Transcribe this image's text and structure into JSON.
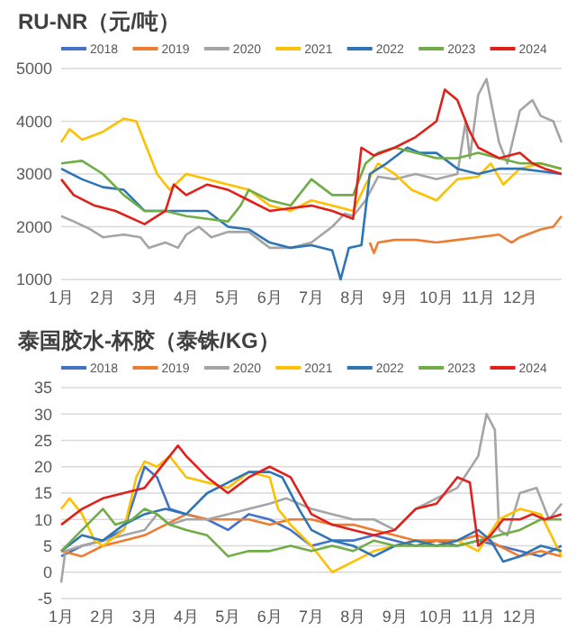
{
  "chart_data": [
    {
      "type": "line",
      "title": "RU-NR（元/吨）",
      "xlim": [
        1,
        13
      ],
      "xticks": [
        {
          "value": 1,
          "label": "1月"
        },
        {
          "value": 2,
          "label": "2月"
        },
        {
          "value": 3,
          "label": "3月"
        },
        {
          "value": 4,
          "label": "4月"
        },
        {
          "value": 5,
          "label": "5月"
        },
        {
          "value": 6,
          "label": "6月"
        },
        {
          "value": 7,
          "label": "7月"
        },
        {
          "value": 8,
          "label": "8月"
        },
        {
          "value": 9,
          "label": "9月"
        },
        {
          "value": 10,
          "label": "10月"
        },
        {
          "value": 11,
          "label": "11月"
        },
        {
          "value": 12,
          "label": "12月"
        }
      ],
      "ylim": [
        1000,
        5000
      ],
      "yticks": [
        1000,
        2000,
        3000,
        4000,
        5000
      ],
      "grid": "y",
      "legend": "top",
      "marker": "none",
      "series": [
        {
          "name": "2018",
          "color": "#4472c4"
        },
        {
          "name": "2019",
          "color": "#ed7d31",
          "x": [
            8.4,
            8.5,
            8.6,
            9,
            9.5,
            10,
            10.5,
            11,
            11.5,
            11.8,
            12,
            12.5,
            12.8,
            13
          ],
          "values": [
            1700,
            1500,
            1700,
            1750,
            1750,
            1700,
            1750,
            1800,
            1850,
            1700,
            1800,
            1950,
            2000,
            2200
          ]
        },
        {
          "name": "2020",
          "color": "#a5a5a5",
          "x": [
            1,
            1.3,
            1.7,
            2,
            2.5,
            2.9,
            3.1,
            3.5,
            3.8,
            4,
            4.3,
            4.6,
            5,
            5.5,
            6,
            6.5,
            7,
            7.5,
            7.8,
            8,
            8.3,
            8.6,
            9,
            9.5,
            10,
            10.5,
            10.7,
            10.8,
            11,
            11.2,
            11.5,
            11.7,
            12,
            12.3,
            12.5,
            12.8,
            13
          ],
          "values": [
            2200,
            2100,
            1950,
            1800,
            1850,
            1800,
            1600,
            1700,
            1600,
            1850,
            2000,
            1800,
            1900,
            1900,
            1600,
            1600,
            1700,
            2000,
            2250,
            2200,
            2500,
            2950,
            2900,
            3000,
            2900,
            3000,
            4000,
            3300,
            4500,
            4800,
            3600,
            3200,
            4200,
            4400,
            4100,
            4000,
            3600
          ]
        },
        {
          "name": "2021",
          "color": "#ffc000",
          "x": [
            1,
            1.2,
            1.5,
            2,
            2.5,
            2.8,
            3,
            3.3,
            3.6,
            4,
            4.5,
            5,
            5.5,
            6,
            6.5,
            7,
            7.5,
            8,
            8.3,
            8.6,
            9,
            9.4,
            10,
            10.5,
            11,
            11.3,
            11.6,
            12,
            12.5,
            13
          ],
          "values": [
            3600,
            3850,
            3650,
            3800,
            4050,
            4000,
            3600,
            3000,
            2700,
            3000,
            2900,
            2800,
            2700,
            2400,
            2300,
            2500,
            2400,
            2300,
            2800,
            3200,
            3000,
            2700,
            2500,
            2900,
            2950,
            3200,
            2800,
            3100,
            3200,
            3100
          ]
        },
        {
          "name": "2022",
          "color": "#2e75b6",
          "x": [
            1,
            1.5,
            2,
            2.5,
            3,
            3.5,
            4,
            4.5,
            5,
            5.5,
            6,
            6.5,
            7,
            7.5,
            7.7,
            7.9,
            8.2,
            8.4,
            8.8,
            9.3,
            9.6,
            10,
            10.5,
            11,
            11.5,
            12,
            12.5,
            13
          ],
          "values": [
            3100,
            2900,
            2750,
            2700,
            2300,
            2300,
            2300,
            2300,
            2000,
            1950,
            1700,
            1600,
            1650,
            1550,
            1000,
            1600,
            1650,
            3000,
            3200,
            3500,
            3400,
            3400,
            3100,
            3000,
            3100,
            3100,
            3050,
            3000
          ]
        },
        {
          "name": "2023",
          "color": "#70ad47",
          "x": [
            1,
            1.5,
            2,
            2.5,
            3,
            3.5,
            4,
            4.5,
            5,
            5.3,
            5.5,
            6,
            6.5,
            7,
            7.5,
            8,
            8.3,
            8.6,
            9,
            9.5,
            10,
            10.5,
            11,
            11.5,
            12,
            12.5,
            13
          ],
          "values": [
            3200,
            3250,
            3000,
            2600,
            2300,
            2300,
            2200,
            2150,
            2100,
            2400,
            2700,
            2500,
            2400,
            2900,
            2600,
            2600,
            3200,
            3400,
            3500,
            3400,
            3300,
            3300,
            3400,
            3300,
            3200,
            3200,
            3100
          ]
        },
        {
          "name": "2024",
          "color": "#e0201b",
          "x": [
            1,
            1.3,
            1.8,
            2.3,
            3,
            3.5,
            3.7,
            4,
            4.5,
            5,
            5.5,
            6,
            6.5,
            7,
            7.5,
            8,
            8.2,
            8.5,
            9,
            9.5,
            10,
            10.2,
            10.5,
            10.8,
            11,
            11.5,
            12,
            12.3,
            12.6,
            13
          ],
          "values": [
            2900,
            2600,
            2400,
            2300,
            2050,
            2300,
            2800,
            2600,
            2800,
            2700,
            2500,
            2300,
            2350,
            2400,
            2300,
            2150,
            3500,
            3350,
            3500,
            3700,
            4000,
            4600,
            4400,
            3800,
            3500,
            3300,
            3400,
            3200,
            3100,
            3000
          ]
        }
      ]
    },
    {
      "type": "line",
      "title": "泰国胶水-杯胶（泰铢/KG）",
      "xlim": [
        1,
        13
      ],
      "xticks": [
        {
          "value": 1,
          "label": "1月"
        },
        {
          "value": 2,
          "label": "2月"
        },
        {
          "value": 3,
          "label": "3月"
        },
        {
          "value": 4,
          "label": "4月"
        },
        {
          "value": 5,
          "label": "5月"
        },
        {
          "value": 6,
          "label": "6月"
        },
        {
          "value": 7,
          "label": "7月"
        },
        {
          "value": 8,
          "label": "8月"
        },
        {
          "value": 9,
          "label": "9月"
        },
        {
          "value": 10,
          "label": "10月"
        },
        {
          "value": 11,
          "label": "11月"
        },
        {
          "value": 12,
          "label": "12月"
        }
      ],
      "ylim": [
        -5,
        35
      ],
      "yticks": [
        -5,
        0,
        5,
        10,
        15,
        20,
        25,
        30,
        35
      ],
      "grid": "y",
      "legend": "top",
      "marker": "none",
      "series": [
        {
          "name": "2018",
          "color": "#4472c4",
          "x": [
            1,
            1.5,
            2,
            2.5,
            3,
            3.3,
            3.6,
            4,
            4.5,
            5,
            5.5,
            6,
            6.5,
            7,
            7.5,
            8,
            8.5,
            9,
            9.5,
            10,
            10.5,
            11,
            11.5,
            12,
            12.5,
            13
          ],
          "values": [
            3,
            5,
            6,
            8,
            20,
            18,
            12,
            11,
            10,
            8,
            11,
            10,
            8,
            5,
            6,
            6,
            7,
            6,
            5,
            6,
            5,
            6,
            5,
            4,
            3,
            5
          ]
        },
        {
          "name": "2019",
          "color": "#ed7d31",
          "x": [
            1,
            1.5,
            2,
            2.5,
            3,
            3.5,
            4,
            4.5,
            5,
            5.5,
            6,
            6.5,
            7,
            7.5,
            8,
            8.5,
            9,
            9.5,
            10,
            10.5,
            11,
            11.5,
            12,
            12.5,
            13
          ],
          "values": [
            4,
            3,
            5,
            6,
            7,
            9,
            11,
            10,
            10,
            10,
            9,
            10,
            10,
            9,
            9,
            8,
            7,
            6,
            6,
            6,
            7,
            5,
            3,
            4,
            3
          ]
        },
        {
          "name": "2020",
          "color": "#a5a5a5",
          "x": [
            1,
            1.1,
            1.5,
            2,
            2.5,
            3,
            3.3,
            3.6,
            4,
            4.5,
            5,
            5.5,
            6,
            6.4,
            7,
            7.5,
            8,
            8.5,
            9,
            9.5,
            10,
            10.5,
            11,
            11.2,
            11.4,
            11.5,
            11.7,
            12,
            12.4,
            12.7,
            13
          ],
          "values": [
            -2,
            4,
            5,
            6,
            7,
            8,
            11,
            9,
            10,
            10,
            11,
            12,
            13,
            14,
            12,
            11,
            10,
            10,
            8,
            12,
            14,
            16,
            22,
            30,
            27,
            8,
            7,
            15,
            16,
            10,
            13
          ]
        },
        {
          "name": "2021",
          "color": "#ffc000",
          "x": [
            1,
            1.2,
            1.5,
            1.8,
            2,
            2.5,
            2.8,
            3,
            3.3,
            3.6,
            4,
            4.5,
            5,
            5.5,
            6,
            6.2,
            6.5,
            7,
            7.5,
            8,
            8.5,
            9,
            9.5,
            10,
            10.5,
            11,
            11.5,
            12,
            12.5,
            13
          ],
          "values": [
            12,
            14,
            11,
            6,
            5,
            8,
            18,
            21,
            20,
            22,
            18,
            17,
            16,
            19,
            18,
            12,
            9,
            5,
            0,
            2,
            4,
            5,
            6,
            5,
            6,
            4,
            10,
            12,
            11,
            3
          ]
        },
        {
          "name": "2022",
          "color": "#2e75b6",
          "x": [
            1,
            1.5,
            2,
            2.5,
            3,
            3.5,
            4,
            4.5,
            5,
            5.5,
            6,
            6.3,
            6.7,
            7,
            7.5,
            8,
            8.5,
            9,
            9.5,
            10,
            10.5,
            11,
            11.3,
            11.6,
            12,
            12.5,
            13
          ],
          "values": [
            4,
            7,
            6,
            9,
            11,
            12,
            11,
            15,
            17,
            19,
            19,
            18,
            12,
            8,
            6,
            5,
            3,
            5,
            6,
            5,
            6,
            8,
            6,
            2,
            3,
            5,
            4
          ]
        },
        {
          "name": "2023",
          "color": "#70ad47",
          "x": [
            1,
            1.5,
            2,
            2.3,
            2.7,
            3,
            3.3,
            3.6,
            4,
            4.5,
            5,
            5.5,
            6,
            6.5,
            7,
            7.5,
            8,
            8.5,
            9,
            9.5,
            10,
            10.5,
            11,
            11.5,
            12,
            12.5,
            13
          ],
          "values": [
            4,
            8,
            12,
            9,
            10,
            12,
            11,
            9,
            8,
            7,
            3,
            4,
            4,
            5,
            4,
            5,
            4,
            6,
            5,
            5,
            5,
            5,
            6,
            7,
            8,
            10,
            10
          ]
        },
        {
          "name": "2024",
          "color": "#e0201b",
          "x": [
            1,
            1.5,
            2,
            2.5,
            3,
            3.5,
            3.8,
            4,
            4.5,
            5,
            5.5,
            6,
            6.5,
            7,
            7.5,
            8,
            8.5,
            9,
            9.5,
            10,
            10.5,
            10.8,
            11,
            11.3,
            11.6,
            12,
            12.3,
            12.6,
            13
          ],
          "values": [
            9,
            12,
            14,
            15,
            16,
            21,
            24,
            22,
            18,
            15,
            18,
            20,
            18,
            11,
            9,
            8,
            7,
            8,
            12,
            13,
            18,
            17,
            5,
            7,
            10,
            10,
            11,
            10,
            11
          ]
        }
      ]
    }
  ]
}
